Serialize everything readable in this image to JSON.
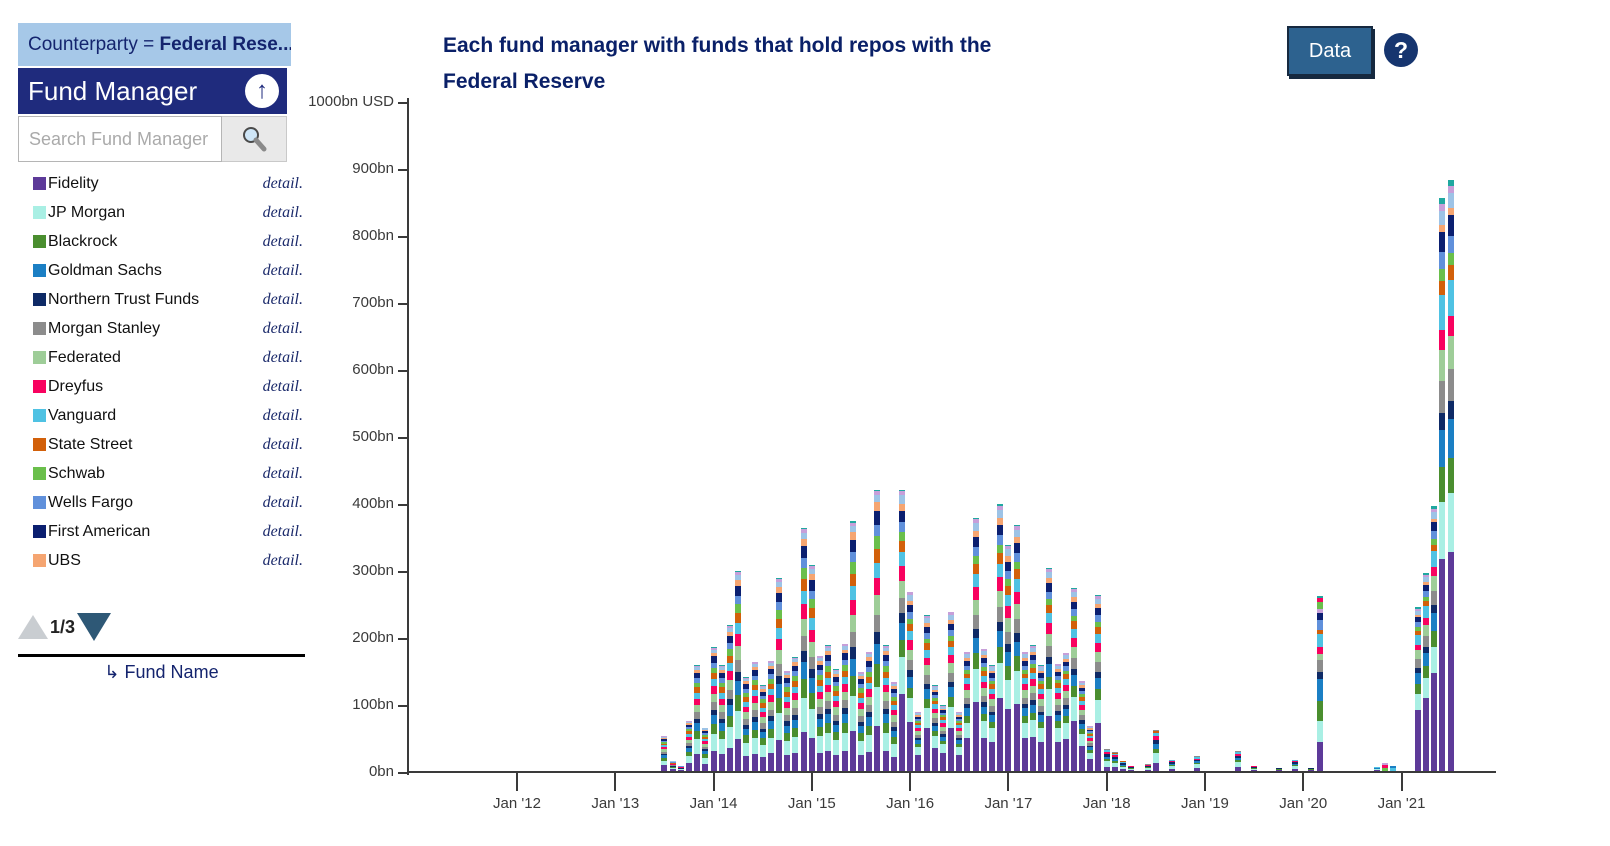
{
  "sidebar": {
    "filter_prefix": "Counterparty = ",
    "filter_value": "Federal Rese...",
    "panel_title": "Fund Manager",
    "collapse_arrow": "↑",
    "search_placeholder": "Search Fund Manager",
    "detail_label": "detail.",
    "fund_managers": [
      {
        "name": "Fidelity",
        "color": "#5d3a99"
      },
      {
        "name": "JP Morgan",
        "color": "#a9efe4"
      },
      {
        "name": "Blackrock",
        "color": "#4a8e2f"
      },
      {
        "name": "Goldman Sachs",
        "color": "#1b7fc4"
      },
      {
        "name": "Northern Trust Funds",
        "color": "#0e2a66"
      },
      {
        "name": "Morgan Stanley",
        "color": "#8c8c8c"
      },
      {
        "name": "Federated",
        "color": "#9ecd98"
      },
      {
        "name": "Dreyfus",
        "color": "#f8025f"
      },
      {
        "name": "Vanguard",
        "color": "#4fc2e3"
      },
      {
        "name": "State Street",
        "color": "#d2600a"
      },
      {
        "name": "Schwab",
        "color": "#6abf4b"
      },
      {
        "name": "Wells Fargo",
        "color": "#6090db"
      },
      {
        "name": "First American",
        "color": "#0b1f70"
      },
      {
        "name": "UBS",
        "color": "#f5a571"
      }
    ],
    "page_indicator": "1/3",
    "sort_arrow": "↳",
    "sort_label": "Fund Name"
  },
  "header": {
    "title_line1": "Each fund manager with funds that hold repos with the",
    "title_line2": "Federal Reserve",
    "data_button": "Data",
    "help_button": "?"
  },
  "chart_data": {
    "type": "bar",
    "stacked": true,
    "title": "Each fund manager with funds that hold repos with the Federal Reserve",
    "unit": "bn USD",
    "ylim": [
      0,
      1000
    ],
    "ytick_labels": [
      "0bn",
      "100bn",
      "200bn",
      "300bn",
      "400bn",
      "500bn",
      "600bn",
      "700bn",
      "800bn",
      "900bn",
      "1000bn USD"
    ],
    "xtick_labels": [
      "Jan '12",
      "Jan '13",
      "Jan '14",
      "Jan '15",
      "Jan '16",
      "Jan '17",
      "Jan '18",
      "Jan '19",
      "Jan '20",
      "Jan '21"
    ],
    "legend_position": "left-sidebar",
    "grid": false,
    "palette": [
      "#5d3a99",
      "#a9efe4",
      "#4a8e2f",
      "#1b7fc4",
      "#0e2a66",
      "#8c8c8c",
      "#9ecd98",
      "#f8025f",
      "#4fc2e3",
      "#d2600a",
      "#6abf4b",
      "#6090db",
      "#0b1f70",
      "#f5a571",
      "#9dc3e6",
      "#c79fd9",
      "#1fa8a0"
    ],
    "palette_names": [
      "Fidelity",
      "JP Morgan",
      "Blackrock",
      "Goldman Sachs",
      "Northern Trust Funds",
      "Morgan Stanley",
      "Federated",
      "Dreyfus",
      "Vanguard",
      "State Street",
      "Schwab",
      "Wells Fargo",
      "First American",
      "UBS",
      "other-a",
      "other-b",
      "other-c"
    ],
    "mixes": {
      "a": [
        [
          0,
          0.16
        ],
        [
          1,
          0.14
        ],
        [
          2,
          0.08
        ],
        [
          3,
          0.07
        ],
        [
          4,
          0.045
        ],
        [
          5,
          0.06
        ],
        [
          6,
          0.07
        ],
        [
          7,
          0.06
        ],
        [
          8,
          0.055
        ],
        [
          9,
          0.05
        ],
        [
          10,
          0.045
        ],
        [
          11,
          0.04
        ],
        [
          12,
          0.05
        ],
        [
          13,
          0.03
        ],
        [
          14,
          0.025
        ],
        [
          15,
          0.015
        ],
        [
          16,
          0.005
        ]
      ],
      "b": [
        [
          0,
          0.27
        ],
        [
          1,
          0.13
        ],
        [
          2,
          0.06
        ],
        [
          3,
          0.06
        ],
        [
          4,
          0.035
        ],
        [
          5,
          0.055
        ],
        [
          6,
          0.06
        ],
        [
          7,
          0.05
        ],
        [
          8,
          0.05
        ],
        [
          9,
          0.04
        ],
        [
          10,
          0.03
        ],
        [
          11,
          0.035
        ],
        [
          12,
          0.04
        ],
        [
          13,
          0.025
        ],
        [
          14,
          0.03
        ],
        [
          15,
          0.015
        ],
        [
          16,
          0.005
        ]
      ],
      "s": [
        [
          0,
          0.2
        ],
        [
          1,
          0.25
        ],
        [
          2,
          0.1
        ],
        [
          3,
          0.1
        ],
        [
          4,
          0.12
        ],
        [
          7,
          0.08
        ],
        [
          8,
          0.08
        ],
        [
          9,
          0.04
        ],
        [
          5,
          0.03
        ]
      ],
      "p": [
        [
          0,
          0.37
        ],
        [
          1,
          0.1
        ],
        [
          2,
          0.06
        ],
        [
          3,
          0.065
        ],
        [
          4,
          0.03
        ],
        [
          5,
          0.055
        ],
        [
          6,
          0.055
        ],
        [
          7,
          0.035
        ],
        [
          8,
          0.06
        ],
        [
          9,
          0.025
        ],
        [
          10,
          0.02
        ],
        [
          11,
          0.03
        ],
        [
          12,
          0.035
        ],
        [
          13,
          0.012
        ],
        [
          14,
          0.025
        ],
        [
          15,
          0.012
        ],
        [
          16,
          0.01
        ]
      ]
    },
    "bars": [
      {
        "month": "Jul '13",
        "mi": 18,
        "total": 52,
        "mx": "a"
      },
      {
        "month": "Aug '13",
        "mi": 19,
        "total": 15,
        "mx": "a"
      },
      {
        "month": "Sep '13",
        "mi": 20,
        "total": 8,
        "mx": "a"
      },
      {
        "month": "Oct '13",
        "mi": 21,
        "total": 75,
        "mx": "a"
      },
      {
        "month": "Nov '13",
        "mi": 22,
        "total": 158,
        "mx": "a"
      },
      {
        "month": "Dec '13",
        "mi": 23,
        "total": 65,
        "mx": "a"
      },
      {
        "month": "Jan '14",
        "mi": 24,
        "total": 185,
        "mx": "a"
      },
      {
        "month": "Feb '14",
        "mi": 25,
        "total": 158,
        "mx": "a"
      },
      {
        "month": "Mar '14",
        "mi": 26,
        "total": 218,
        "mx": "a"
      },
      {
        "month": "Apr '14",
        "mi": 27,
        "total": 298,
        "mx": "a"
      },
      {
        "month": "May '14",
        "mi": 28,
        "total": 140,
        "mx": "a"
      },
      {
        "month": "Jun '14",
        "mi": 29,
        "total": 163,
        "mx": "a"
      },
      {
        "month": "Jul '14",
        "mi": 30,
        "total": 128,
        "mx": "a"
      },
      {
        "month": "Aug '14",
        "mi": 31,
        "total": 165,
        "mx": "a"
      },
      {
        "month": "Sep '14",
        "mi": 32,
        "total": 288,
        "mx": "a"
      },
      {
        "month": "Oct '14",
        "mi": 33,
        "total": 150,
        "mx": "a"
      },
      {
        "month": "Nov '14",
        "mi": 34,
        "total": 170,
        "mx": "a"
      },
      {
        "month": "Dec '14",
        "mi": 35,
        "total": 363,
        "mx": "a"
      },
      {
        "month": "Jan '15",
        "mi": 36,
        "total": 308,
        "mx": "a"
      },
      {
        "month": "Feb '15",
        "mi": 37,
        "total": 172,
        "mx": "a"
      },
      {
        "month": "Mar '15",
        "mi": 38,
        "total": 188,
        "mx": "a"
      },
      {
        "month": "Apr '15",
        "mi": 39,
        "total": 152,
        "mx": "a"
      },
      {
        "month": "May '15",
        "mi": 40,
        "total": 190,
        "mx": "a"
      },
      {
        "month": "Jun '15",
        "mi": 41,
        "total": 373,
        "mx": "a"
      },
      {
        "month": "Jul '15",
        "mi": 42,
        "total": 148,
        "mx": "a"
      },
      {
        "month": "Aug '15",
        "mi": 43,
        "total": 178,
        "mx": "a"
      },
      {
        "month": "Sep '15",
        "mi": 44,
        "total": 420,
        "mx": "a"
      },
      {
        "month": "Oct '15",
        "mi": 45,
        "total": 188,
        "mx": "a"
      },
      {
        "month": "Nov '15",
        "mi": 46,
        "total": 133,
        "mx": "a"
      },
      {
        "month": "Dec '15",
        "mi": 47,
        "total": 420,
        "mx": "b"
      },
      {
        "month": "Jan '16",
        "mi": 48,
        "total": 268,
        "mx": "b"
      },
      {
        "month": "Feb '16",
        "mi": 49,
        "total": 88,
        "mx": "b"
      },
      {
        "month": "Mar '16",
        "mi": 50,
        "total": 233,
        "mx": "b"
      },
      {
        "month": "Apr '16",
        "mi": 51,
        "total": 128,
        "mx": "b"
      },
      {
        "month": "May '16",
        "mi": 52,
        "total": 98,
        "mx": "b"
      },
      {
        "month": "Jun '16",
        "mi": 53,
        "total": 238,
        "mx": "b"
      },
      {
        "month": "Jul '16",
        "mi": 54,
        "total": 88,
        "mx": "b"
      },
      {
        "month": "Aug '16",
        "mi": 55,
        "total": 178,
        "mx": "b"
      },
      {
        "month": "Sep '16",
        "mi": 56,
        "total": 378,
        "mx": "b"
      },
      {
        "month": "Oct '16",
        "mi": 57,
        "total": 183,
        "mx": "b"
      },
      {
        "month": "Nov '16",
        "mi": 58,
        "total": 158,
        "mx": "b"
      },
      {
        "month": "Dec '16",
        "mi": 59,
        "total": 398,
        "mx": "b"
      },
      {
        "month": "Jan '17",
        "mi": 60,
        "total": 338,
        "mx": "b"
      },
      {
        "month": "Feb '17",
        "mi": 61,
        "total": 368,
        "mx": "b"
      },
      {
        "month": "Mar '17",
        "mi": 62,
        "total": 178,
        "mx": "b"
      },
      {
        "month": "Apr '17",
        "mi": 63,
        "total": 188,
        "mx": "b"
      },
      {
        "month": "May '17",
        "mi": 64,
        "total": 158,
        "mx": "b"
      },
      {
        "month": "Jun '17",
        "mi": 65,
        "total": 303,
        "mx": "b"
      },
      {
        "month": "Jul '17",
        "mi": 66,
        "total": 160,
        "mx": "b"
      },
      {
        "month": "Aug '17",
        "mi": 67,
        "total": 177,
        "mx": "b"
      },
      {
        "month": "Sep '17",
        "mi": 68,
        "total": 273,
        "mx": "b"
      },
      {
        "month": "Oct '17",
        "mi": 69,
        "total": 135,
        "mx": "b"
      },
      {
        "month": "Nov '17",
        "mi": 70,
        "total": 67,
        "mx": "b"
      },
      {
        "month": "Dec '17",
        "mi": 71,
        "total": 263,
        "mx": "b"
      },
      {
        "month": "Jan '18",
        "mi": 72,
        "total": 33,
        "mx": "s"
      },
      {
        "month": "Feb '18",
        "mi": 73,
        "total": 28,
        "mx": "s"
      },
      {
        "month": "Mar '18",
        "mi": 74,
        "total": 15,
        "mx": "s"
      },
      {
        "month": "Apr '18",
        "mi": 75,
        "total": 8,
        "mx": "s"
      },
      {
        "month": "Jun '18",
        "mi": 77,
        "total": 10,
        "mx": "s"
      },
      {
        "month": "Jul '18",
        "mi": 78,
        "total": 61,
        "mx": "s"
      },
      {
        "month": "Sep '18",
        "mi": 80,
        "total": 17,
        "mx": "s"
      },
      {
        "month": "Dec '18",
        "mi": 83,
        "total": 22,
        "mx": "s"
      },
      {
        "month": "May '19",
        "mi": 88,
        "total": 30,
        "mx": "s"
      },
      {
        "month": "Jul '19",
        "mi": 90,
        "total": 8,
        "mx": "s"
      },
      {
        "month": "Oct '19",
        "mi": 93,
        "total": 5,
        "mx": "s"
      },
      {
        "month": "Dec '19",
        "mi": 95,
        "total": 17,
        "mx": "s"
      },
      {
        "month": "Feb '20",
        "mi": 97,
        "total": 5,
        "mx": "s"
      },
      {
        "month": "Mar '20",
        "mi": 98,
        "total": 262,
        "segs": [
          [
            0,
            44
          ],
          [
            1,
            30
          ],
          [
            2,
            30
          ],
          [
            3,
            33
          ],
          [
            4,
            11
          ],
          [
            5,
            18
          ],
          [
            6,
            9
          ],
          [
            7,
            10
          ],
          [
            8,
            19
          ],
          [
            9,
            6
          ],
          [
            11,
            15
          ],
          [
            12,
            11
          ],
          [
            15,
            6
          ],
          [
            10,
            10
          ],
          [
            7,
            6
          ],
          [
            16,
            4
          ]
        ]
      },
      {
        "month": "Oct '20",
        "mi": 105,
        "total": 6,
        "mx": "s"
      },
      {
        "month": "Nov '20",
        "mi": 106,
        "total": 12,
        "segs": [
          [
            10,
            5
          ],
          [
            7,
            4
          ],
          [
            15,
            3
          ]
        ]
      },
      {
        "month": "Dec '20",
        "mi": 107,
        "total": 8,
        "segs": [
          [
            8,
            5
          ],
          [
            3,
            3
          ]
        ]
      },
      {
        "month": "Mar '21",
        "mi": 110,
        "total": 245,
        "mx": "p"
      },
      {
        "month": "Apr '21",
        "mi": 111,
        "total": 296,
        "mx": "p"
      },
      {
        "month": "May '21",
        "mi": 112,
        "total": 395,
        "mx": "p"
      },
      {
        "month": "Jun '21",
        "mi": 113,
        "total": 855,
        "mx": "p"
      },
      {
        "month": "Jul '21",
        "mi": 114,
        "total": 882,
        "mx": "p"
      }
    ]
  }
}
